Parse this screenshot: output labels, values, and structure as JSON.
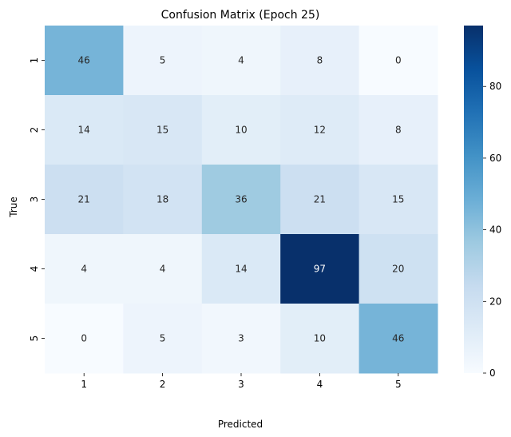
{
  "chart_data": {
    "type": "heatmap",
    "title": "Confusion Matrix (Epoch 25)",
    "xlabel": "Predicted",
    "ylabel": "True",
    "x_categories": [
      "1",
      "2",
      "3",
      "4",
      "5"
    ],
    "y_categories": [
      "1",
      "2",
      "3",
      "4",
      "5"
    ],
    "values": [
      [
        46,
        5,
        4,
        8,
        0
      ],
      [
        14,
        15,
        10,
        12,
        8
      ],
      [
        21,
        18,
        36,
        21,
        15
      ],
      [
        4,
        4,
        14,
        97,
        20
      ],
      [
        0,
        5,
        3,
        10,
        46
      ]
    ],
    "colormap": "Blues",
    "color_range": [
      0,
      97
    ],
    "colorbar_ticks": [
      0,
      20,
      40,
      60,
      80
    ]
  }
}
